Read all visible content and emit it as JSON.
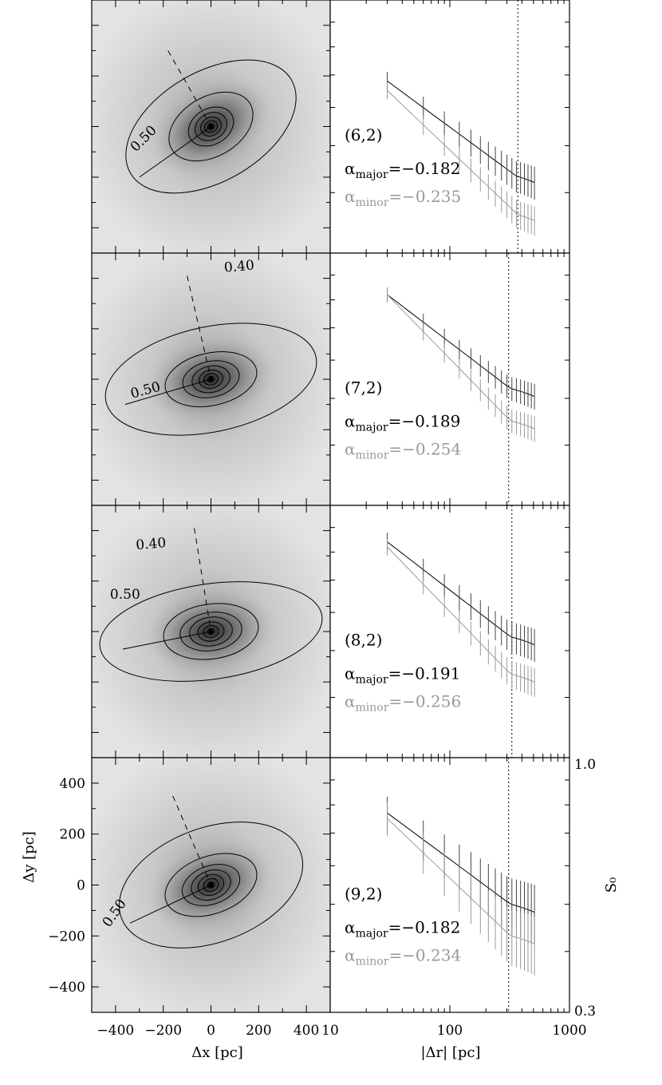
{
  "chart_data": [
    {
      "type": "heatmap",
      "panel": "(6,2)",
      "contour_labels": [
        "0.50"
      ],
      "xlim": [
        -500,
        500
      ],
      "ylim": [
        -500,
        500
      ],
      "major_axis": {
        "from": [
          -300,
          -200
        ],
        "to": [
          0,
          0
        ]
      },
      "minor_axis": {
        "from": [
          -180,
          300
        ],
        "to": [
          0,
          0
        ]
      },
      "ellipses": [
        {
          "a": 390,
          "b": 230,
          "ang": 30
        },
        {
          "a": 190,
          "b": 125,
          "ang": 30
        },
        {
          "a": 100,
          "b": 75,
          "ang": 30
        },
        {
          "a": 70,
          "b": 55,
          "ang": 30
        },
        {
          "a": 45,
          "b": 38,
          "ang": 30
        },
        {
          "a": 28,
          "b": 24,
          "ang": 30
        },
        {
          "a": 14,
          "b": 12,
          "ang": 30
        }
      ]
    },
    {
      "type": "line",
      "panel": "(6,2)",
      "xlabel": "|Δr| [pc]",
      "xscale": "log",
      "xlim": [
        10,
        1000
      ],
      "ylim": [
        0.3,
        1.0
      ],
      "label": "(6,2)",
      "alpha_major": "−0.182",
      "alpha_minor": "−0.235",
      "vline": 370,
      "x": [
        30,
        60,
        90,
        120,
        150,
        180,
        210,
        240,
        270,
        300,
        330,
        360,
        390,
        420,
        450,
        480,
        510
      ],
      "series": [
        {
          "name": "major",
          "color": "#000000",
          "errcolor": "#444444",
          "y0": 0.68,
          "alpha": -0.182,
          "err": 0.045,
          "flat_after": 360
        },
        {
          "name": "minor",
          "color": "#999999",
          "errcolor": "#999999",
          "y0": 0.65,
          "alpha": -0.235,
          "err": 0.04,
          "flat_after": 370
        }
      ]
    },
    {
      "type": "heatmap",
      "panel": "(7,2)",
      "contour_labels": [
        "0.50",
        "0.40"
      ],
      "xlim": [
        -500,
        500
      ],
      "ylim": [
        -500,
        500
      ],
      "major_axis": {
        "from": [
          -360,
          -100
        ],
        "to": [
          0,
          0
        ]
      },
      "minor_axis": {
        "from": [
          -100,
          410
        ],
        "to": [
          0,
          0
        ]
      },
      "ellipses": [
        {
          "a": 450,
          "b": 220,
          "ang": 12
        },
        {
          "a": 195,
          "b": 110,
          "ang": 12
        },
        {
          "a": 120,
          "b": 75,
          "ang": 12
        },
        {
          "a": 80,
          "b": 55,
          "ang": 12
        },
        {
          "a": 50,
          "b": 38,
          "ang": 12
        },
        {
          "a": 30,
          "b": 24,
          "ang": 12
        },
        {
          "a": 14,
          "b": 12,
          "ang": 12
        }
      ]
    },
    {
      "type": "line",
      "panel": "(7,2)",
      "xlabel": "|Δr| [pc]",
      "xscale": "log",
      "xlim": [
        10,
        1000
      ],
      "ylim": [
        0.3,
        1.0
      ],
      "label": "(7,2)",
      "alpha_major": "−0.189",
      "alpha_minor": "−0.254",
      "vline": 310,
      "x": [
        30,
        60,
        90,
        120,
        150,
        180,
        210,
        240,
        270,
        300,
        330,
        360,
        390,
        420,
        450,
        480,
        510
      ],
      "series": [
        {
          "name": "major",
          "color": "#000000",
          "errcolor": "#444444",
          "y0": 0.82,
          "alpha": -0.189,
          "err": 0.035,
          "flat_after": 320
        },
        {
          "name": "minor",
          "color": "#999999",
          "errcolor": "#999999",
          "y0": 0.82,
          "alpha": -0.254,
          "err": 0.035,
          "flat_after": 320
        }
      ]
    },
    {
      "type": "heatmap",
      "panel": "(8,2)",
      "contour_labels": [
        "0.40",
        "0.50"
      ],
      "xlim": [
        -500,
        500
      ],
      "ylim": [
        -500,
        500
      ],
      "major_axis": {
        "from": [
          -370,
          -70
        ],
        "to": [
          0,
          0
        ]
      },
      "minor_axis": {
        "from": [
          -70,
          410
        ],
        "to": [
          0,
          0
        ]
      },
      "ellipses": [
        {
          "a": 470,
          "b": 200,
          "ang": 8
        },
        {
          "a": 200,
          "b": 115,
          "ang": 8
        },
        {
          "a": 130,
          "b": 80,
          "ang": 8
        },
        {
          "a": 90,
          "b": 60,
          "ang": 8
        },
        {
          "a": 55,
          "b": 40,
          "ang": 8
        },
        {
          "a": 32,
          "b": 25,
          "ang": 8
        },
        {
          "a": 14,
          "b": 12,
          "ang": 8
        }
      ]
    },
    {
      "type": "line",
      "panel": "(8,2)",
      "xlabel": "|Δr| [pc]",
      "xscale": "log",
      "xlim": [
        10,
        1000
      ],
      "ylim": [
        0.3,
        1.0
      ],
      "label": "(8,2)",
      "alpha_major": "−0.191",
      "alpha_minor": "−0.256",
      "vline": 330,
      "x": [
        30,
        60,
        90,
        120,
        150,
        180,
        210,
        240,
        270,
        300,
        330,
        360,
        390,
        420,
        450,
        480,
        510
      ],
      "series": [
        {
          "name": "major",
          "color": "#000000",
          "errcolor": "#444444",
          "y0": 0.84,
          "alpha": -0.191,
          "err": 0.045,
          "flat_after": 320
        },
        {
          "name": "minor",
          "color": "#999999",
          "errcolor": "#999999",
          "y0": 0.82,
          "alpha": -0.256,
          "err": 0.04,
          "flat_after": 320
        }
      ]
    },
    {
      "type": "heatmap",
      "panel": "(9,2)",
      "contour_labels": [
        "0.50"
      ],
      "xlim": [
        -500,
        500
      ],
      "ylim": [
        -500,
        500
      ],
      "xlabel": "Δx [pc]",
      "ylabel": "Δy [pc]",
      "xticks": [
        -400,
        -200,
        0,
        200,
        400
      ],
      "yticks": [
        400,
        200,
        0,
        -200,
        -400
      ],
      "major_axis": {
        "from": [
          -340,
          -150
        ],
        "to": [
          0,
          0
        ]
      },
      "minor_axis": {
        "from": [
          -160,
          350
        ],
        "to": [
          0,
          0
        ]
      },
      "ellipses": [
        {
          "a": 400,
          "b": 240,
          "ang": 20
        },
        {
          "a": 200,
          "b": 120,
          "ang": 20
        },
        {
          "a": 125,
          "b": 80,
          "ang": 20
        },
        {
          "a": 85,
          "b": 60,
          "ang": 20
        },
        {
          "a": 55,
          "b": 42,
          "ang": 20
        },
        {
          "a": 32,
          "b": 26,
          "ang": 20
        },
        {
          "a": 14,
          "b": 12,
          "ang": 20
        }
      ]
    },
    {
      "type": "line",
      "panel": "(9,2)",
      "xlabel": "|Δr| [pc]",
      "ylabel": "S₀",
      "xscale": "log",
      "xlim": [
        10,
        1000
      ],
      "ylim": [
        0.3,
        1.0
      ],
      "xticks": [
        10,
        100,
        1000
      ],
      "yticks": [
        1.0,
        0.3
      ],
      "label": "(9,2)",
      "alpha_major": "−0.182",
      "alpha_minor": "−0.234",
      "vline": 310,
      "x": [
        30,
        60,
        90,
        120,
        150,
        180,
        210,
        240,
        270,
        300,
        330,
        360,
        390,
        420,
        450,
        480,
        510
      ],
      "series": [
        {
          "name": "major",
          "color": "#000000",
          "errcolor": "#444444",
          "y0": 0.77,
          "alpha": -0.182,
          "err": 0.08,
          "flat_after": 320
        },
        {
          "name": "minor",
          "color": "#999999",
          "errcolor": "#999999",
          "y0": 0.75,
          "alpha": -0.234,
          "err": 0.08,
          "flat_after": 320
        }
      ]
    }
  ],
  "tick_labels": {
    "left_x": [
      "−400",
      "−200",
      "0",
      "200",
      "400"
    ],
    "left_y": [
      "400",
      "200",
      "0",
      "−200",
      "−400"
    ],
    "right_x": [
      "10",
      "100",
      "1000"
    ],
    "right_y": [
      "1.0",
      "0.3"
    ]
  },
  "axis_titles": {
    "left_x": "Δx [pc]",
    "left_y": "Δy [pc]",
    "right_x": "|Δr| [pc]",
    "right_y": "S₀"
  }
}
